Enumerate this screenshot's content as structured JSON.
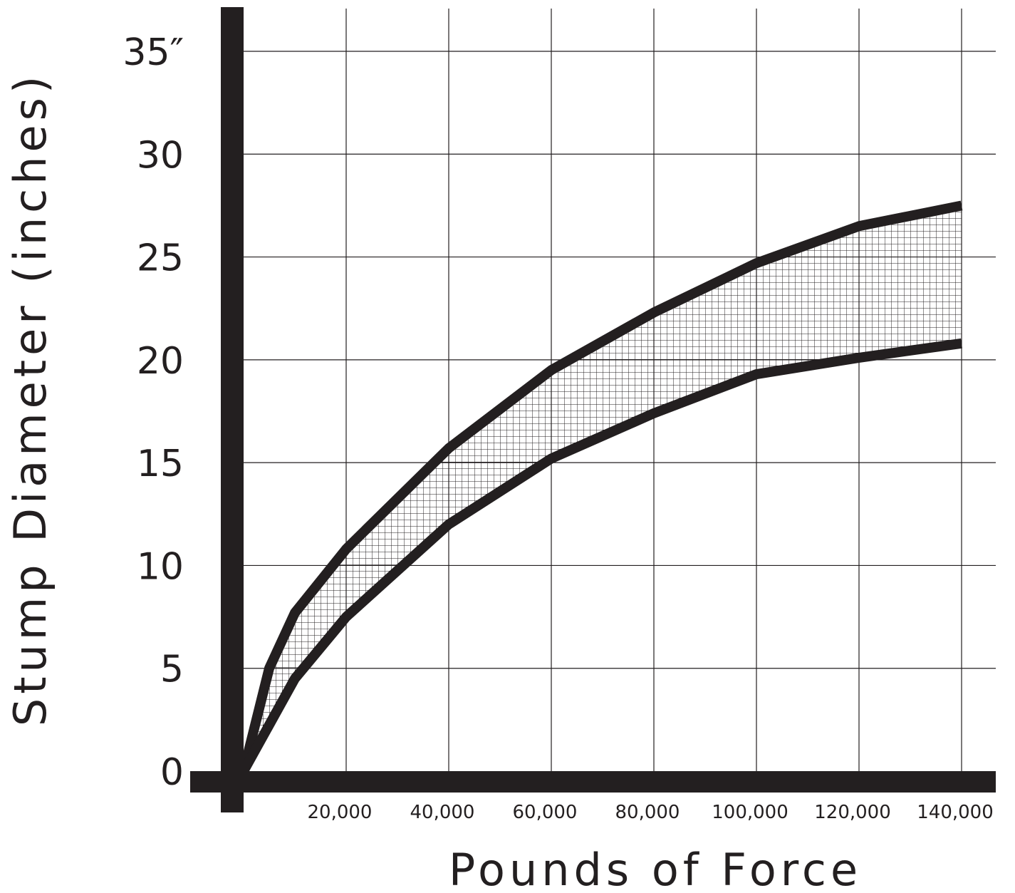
{
  "chart_data": {
    "type": "area",
    "xlabel": "Pounds of Force",
    "ylabel": "Stump Diameter (inches)",
    "xlim": [
      0,
      140000
    ],
    "ylim": [
      0,
      35
    ],
    "grid": true,
    "x_ticks": [
      {
        "value": 20000,
        "label": "20,000"
      },
      {
        "value": 40000,
        "label": "40,000"
      },
      {
        "value": 60000,
        "label": "60,000"
      },
      {
        "value": 80000,
        "label": "80,000"
      },
      {
        "value": 100000,
        "label": "100,000"
      },
      {
        "value": 120000,
        "label": "120,000"
      },
      {
        "value": 140000,
        "label": "140,000"
      }
    ],
    "y_ticks": [
      {
        "value": 0,
        "label": "0"
      },
      {
        "value": 5,
        "label": "5"
      },
      {
        "value": 10,
        "label": "10"
      },
      {
        "value": 15,
        "label": "15"
      },
      {
        "value": 20,
        "label": "20"
      },
      {
        "value": 25,
        "label": "25"
      },
      {
        "value": 30,
        "label": "30"
      },
      {
        "value": 35,
        "label": "35″"
      }
    ],
    "series": [
      {
        "x": [
          0,
          5000,
          10000,
          20000,
          40000,
          60000,
          80000,
          100000,
          120000,
          140000
        ],
        "values": [
          0,
          5,
          7.7,
          10.8,
          15.7,
          19.5,
          22.3,
          24.7,
          26.5,
          27.5
        ]
      },
      {
        "x": [
          0,
          10000,
          20000,
          40000,
          60000,
          80000,
          100000,
          120000,
          140000
        ],
        "values": [
          0,
          4.5,
          7.5,
          12,
          15.2,
          17.4,
          19.3,
          20.1,
          20.8
        ]
      }
    ],
    "fill_between": {
      "pattern": "crosshatch"
    },
    "colors": {
      "ink": "#231f20",
      "grid": "#231f20",
      "background": "#ffffff"
    }
  }
}
